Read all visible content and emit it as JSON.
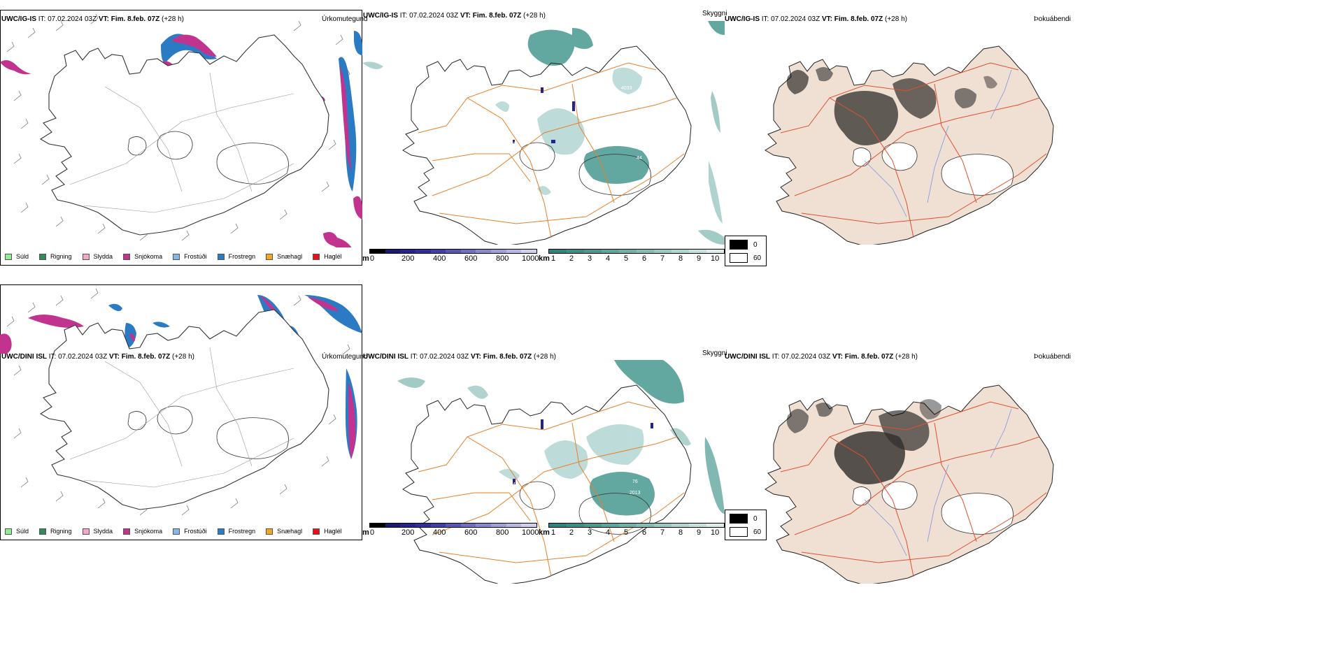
{
  "rows": [
    {
      "id": "ig",
      "header": {
        "model": "UWC/IG-IS",
        "it_label": "IT:",
        "it_value": "07.02.2024 03Z",
        "vt_label": "VT:",
        "vt_value": "Fim. 8.feb. 07Z",
        "lead": "(+28 h)"
      },
      "titles": {
        "precip": "Úrkomutegund",
        "vis": "Skyggni",
        "fog": "Þokuábendi"
      }
    },
    {
      "id": "dini",
      "header": {
        "model": "UWC/DINI ISL",
        "it_label": "IT:",
        "it_value": "07.02.2024 03Z",
        "vt_label": "VT:",
        "vt_value": "Fim. 8.feb. 07Z",
        "lead": "(+28 h)"
      },
      "titles": {
        "precip": "Úrkomutegund",
        "vis": "Skyggni",
        "fog": "Þokuábendi"
      }
    }
  ],
  "precip_legend": [
    {
      "label": "Súld",
      "color": "#90ee90"
    },
    {
      "label": "Rigning",
      "color": "#2e8b57"
    },
    {
      "label": "Slydda",
      "color": "#f4a6c8"
    },
    {
      "label": "Snjókoma",
      "color": "#c2338f"
    },
    {
      "label": "Frostúði",
      "color": "#87b7e8"
    },
    {
      "label": "Frostregn",
      "color": "#2b7bc4"
    },
    {
      "label": "Snæhagl",
      "color": "#f5a623"
    },
    {
      "label": "Haglél",
      "color": "#e8101a"
    }
  ],
  "m_scale": {
    "unit": "m",
    "ticks": [
      "0",
      "200",
      "400",
      "600",
      "800",
      "1000"
    ],
    "colors": [
      "#000000",
      "#1a1a70",
      "#24248c",
      "#30309a",
      "#4040a8",
      "#5858b4",
      "#7070c0",
      "#8888cc",
      "#a0a0d8",
      "#b8b8e4",
      "#d0d0ee"
    ]
  },
  "km_scale": {
    "unit": "km",
    "ticks": [
      "1",
      "2",
      "3",
      "4",
      "5",
      "6",
      "7",
      "8",
      "9",
      "10"
    ],
    "colors": [
      "#2a8480",
      "#3a9088",
      "#4a9a92",
      "#5ba69e",
      "#6eb2aa",
      "#82beb6",
      "#98cac4",
      "#aed6d0",
      "#c4e2de",
      "#dceeec"
    ]
  },
  "fog_legend": [
    {
      "label": "0",
      "color": "#000000"
    },
    {
      "label": "60",
      "color": "#ffffff"
    }
  ],
  "label_values": {
    "row1": [
      "3",
      "4033",
      "44"
    ],
    "row2": [
      "673",
      "42",
      "76",
      "2013"
    ]
  },
  "colors": {
    "coast": "#222222",
    "roads": "#e8802a",
    "fog_land": "#f0e0d4",
    "fog_roads": "#e05030",
    "rivers": "#7f95e0",
    "teal": "#2e8b80",
    "blue": "#2b7bc4",
    "magenta": "#c2338f"
  }
}
